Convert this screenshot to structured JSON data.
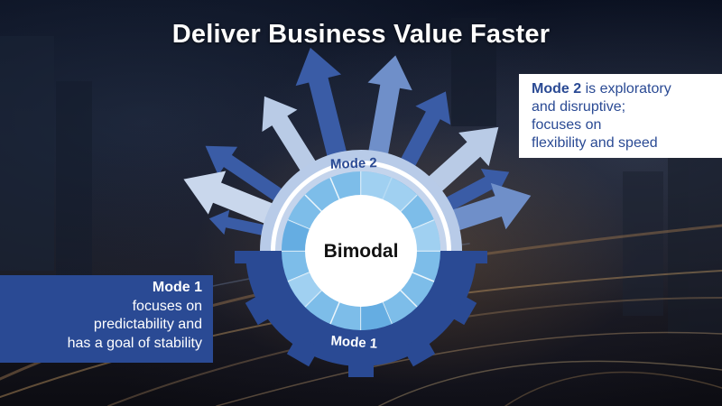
{
  "title": "Deliver Business Value Faster",
  "center_label": "Bimodal",
  "gear": {
    "mode2_label": "Mode 2",
    "mode1_label": "Mode 1"
  },
  "callouts": {
    "mode2": {
      "heading": "Mode 2",
      "lines": [
        "is exploratory",
        "and disruptive;",
        "focuses on",
        "flexibility and speed"
      ]
    },
    "mode1": {
      "heading": "Mode 1",
      "lines": [
        "focuses on",
        "predictability and",
        "has a goal of stability"
      ]
    }
  },
  "colors": {
    "mode1_blue": "#2a4a94",
    "mode2_light": "#b8cbe8",
    "arrow_dark": "#3a5ca6",
    "arrow_mid": "#6f8fc9",
    "arrow_light": "#b9cbe6",
    "center_ring_light": "#a9d4f2",
    "center_ring_mid": "#5fa9e0"
  }
}
